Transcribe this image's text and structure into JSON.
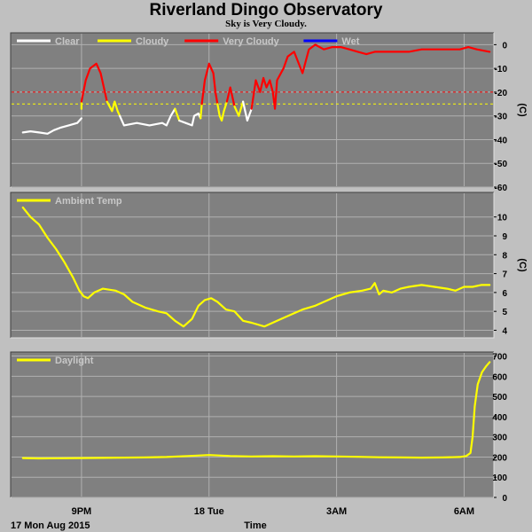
{
  "header": {
    "title": "Riverland Dingo Observatory",
    "subtitle": "Sky is Very Cloudy."
  },
  "footer": {
    "date_label": "17 Mon Aug 2015",
    "x_axis_label": "Time"
  },
  "colors": {
    "background": "#c0c0c0",
    "panel": "#808080",
    "grid": "#b0b0b0",
    "clear": "#ffffff",
    "cloudy": "#ffff00",
    "very_cloudy": "#ff0000",
    "wet": "#0000ff",
    "threshold_very_cloudy": "#ff0000",
    "threshold_cloudy": "#ffff00"
  },
  "chart_data": [
    {
      "type": "line",
      "panel": "sky",
      "ylabel": "(C)",
      "ylim": [
        -60,
        5
      ],
      "yticks": [
        "0",
        "-10",
        "-20",
        "-30",
        "-40",
        "-50",
        "-60"
      ],
      "xlim": [
        19.5,
        30.7
      ],
      "xticks": [
        {
          "x": 21,
          "label": "9PM"
        },
        {
          "x": 24,
          "label": "18 Tue"
        },
        {
          "x": 27,
          "label": "3AM"
        },
        {
          "x": 30,
          "label": "6AM"
        }
      ],
      "legend": [
        {
          "label": "Clear",
          "color": "#ffffff"
        },
        {
          "label": "Cloudy",
          "color": "#ffff00"
        },
        {
          "label": "Very Cloudy",
          "color": "#ff0000"
        },
        {
          "label": "Wet",
          "color": "#0000ff"
        }
      ],
      "thresholds": [
        {
          "y": -20,
          "color": "#ff0000"
        },
        {
          "y": -25,
          "color": "#ffff00"
        }
      ],
      "series": [
        {
          "name": "Clear",
          "color": "#ffffff",
          "points": [
            [
              19.62,
              -37
            ],
            [
              19.8,
              -36.5
            ],
            [
              20.0,
              -37
            ],
            [
              20.2,
              -37.5
            ],
            [
              20.35,
              -36
            ],
            [
              20.5,
              -35
            ],
            [
              20.7,
              -34
            ],
            [
              20.9,
              -33
            ],
            [
              21.0,
              -31
            ]
          ]
        },
        {
          "name": "Cloudy",
          "color": "#ffff00",
          "points": [
            [
              21.0,
              -27
            ],
            [
              21.0,
              -24
            ]
          ]
        },
        {
          "name": "Very Cloudy",
          "color": "#ff0000",
          "points": [
            [
              21.0,
              -24
            ],
            [
              21.1,
              -15
            ],
            [
              21.2,
              -10
            ],
            [
              21.35,
              -8
            ],
            [
              21.45,
              -12
            ],
            [
              21.55,
              -20
            ],
            [
              21.6,
              -24
            ]
          ]
        },
        {
          "name": "Cloudy",
          "color": "#ffff00",
          "points": [
            [
              21.6,
              -24
            ],
            [
              21.72,
              -28
            ],
            [
              21.78,
              -24
            ],
            [
              21.85,
              -28
            ],
            [
              21.9,
              -30
            ]
          ]
        },
        {
          "name": "Clear",
          "color": "#ffffff",
          "points": [
            [
              21.9,
              -30
            ],
            [
              22.0,
              -34
            ],
            [
              22.3,
              -33
            ],
            [
              22.6,
              -34
            ],
            [
              22.9,
              -33
            ],
            [
              23.0,
              -34
            ],
            [
              23.1,
              -30
            ],
            [
              23.2,
              -27
            ]
          ]
        },
        {
          "name": "Cloudy",
          "color": "#ffff00",
          "points": [
            [
              23.2,
              -27
            ],
            [
              23.3,
              -32
            ]
          ]
        },
        {
          "name": "Clear",
          "color": "#ffffff",
          "points": [
            [
              23.3,
              -32
            ],
            [
              23.45,
              -33
            ],
            [
              23.6,
              -34
            ],
            [
              23.65,
              -30
            ],
            [
              23.75,
              -29
            ],
            [
              23.8,
              -31
            ]
          ]
        },
        {
          "name": "Cloudy",
          "color": "#ffff00",
          "points": [
            [
              23.8,
              -31
            ],
            [
              23.83,
              -25
            ]
          ]
        },
        {
          "name": "Very Cloudy",
          "color": "#ff0000",
          "points": [
            [
              23.83,
              -25
            ],
            [
              23.9,
              -15
            ],
            [
              24.0,
              -8
            ],
            [
              24.1,
              -12
            ],
            [
              24.15,
              -20
            ],
            [
              24.2,
              -25
            ]
          ]
        },
        {
          "name": "Cloudy",
          "color": "#ffff00",
          "points": [
            [
              24.2,
              -25
            ],
            [
              24.25,
              -30
            ],
            [
              24.3,
              -32
            ],
            [
              24.35,
              -28
            ],
            [
              24.42,
              -24
            ]
          ]
        },
        {
          "name": "Very Cloudy",
          "color": "#ff0000",
          "points": [
            [
              24.42,
              -24
            ],
            [
              24.5,
              -18
            ],
            [
              24.55,
              -22
            ],
            [
              24.6,
              -26
            ]
          ]
        },
        {
          "name": "Cloudy",
          "color": "#ffff00",
          "points": [
            [
              24.6,
              -26
            ],
            [
              24.7,
              -30
            ],
            [
              24.8,
              -24
            ]
          ]
        },
        {
          "name": "Clear",
          "color": "#ffffff",
          "points": [
            [
              24.8,
              -24
            ],
            [
              24.9,
              -32
            ],
            [
              25.0,
              -27
            ]
          ]
        },
        {
          "name": "Very Cloudy",
          "color": "#ff0000",
          "points": [
            [
              25.0,
              -27
            ],
            [
              25.1,
              -15
            ],
            [
              25.2,
              -20
            ],
            [
              25.28,
              -14
            ],
            [
              25.35,
              -18
            ],
            [
              25.43,
              -15
            ],
            [
              25.5,
              -20
            ],
            [
              25.55,
              -27
            ],
            [
              25.6,
              -15
            ],
            [
              25.75,
              -10
            ],
            [
              25.85,
              -5
            ],
            [
              26.0,
              -3
            ],
            [
              26.2,
              -12
            ],
            [
              26.35,
              -2
            ],
            [
              26.5,
              0
            ],
            [
              26.7,
              -2
            ],
            [
              26.9,
              -1
            ],
            [
              27.1,
              -1
            ],
            [
              27.3,
              -2
            ],
            [
              27.5,
              -3
            ],
            [
              27.7,
              -4
            ],
            [
              27.9,
              -3
            ],
            [
              28.1,
              -3
            ],
            [
              28.4,
              -3
            ],
            [
              28.7,
              -3
            ],
            [
              29.0,
              -2
            ],
            [
              29.3,
              -2
            ],
            [
              29.6,
              -2
            ],
            [
              29.9,
              -2
            ],
            [
              30.1,
              -1
            ],
            [
              30.3,
              -2
            ],
            [
              30.6,
              -3
            ]
          ]
        }
      ]
    },
    {
      "type": "line",
      "panel": "ambient",
      "ylabel": "(C)",
      "ylim": [
        3.6,
        11.3
      ],
      "yticks": [
        "10",
        "9",
        "8",
        "7",
        "6",
        "5",
        "4"
      ],
      "xlim": [
        19.5,
        30.7
      ],
      "xticks": [
        {
          "x": 21,
          "label": "9PM"
        },
        {
          "x": 24,
          "label": "18 Tue"
        },
        {
          "x": 27,
          "label": "3AM"
        },
        {
          "x": 30,
          "label": "6AM"
        }
      ],
      "legend": [
        {
          "label": "Ambient Temp",
          "color": "#ffff00"
        }
      ],
      "series": [
        {
          "name": "Ambient Temp",
          "color": "#ffff00",
          "points": [
            [
              19.62,
              10.5
            ],
            [
              19.8,
              10.0
            ],
            [
              20.0,
              9.6
            ],
            [
              20.2,
              8.9
            ],
            [
              20.4,
              8.3
            ],
            [
              20.6,
              7.6
            ],
            [
              20.8,
              6.8
            ],
            [
              20.95,
              6.1
            ],
            [
              21.05,
              5.8
            ],
            [
              21.15,
              5.7
            ],
            [
              21.3,
              6.0
            ],
            [
              21.5,
              6.2
            ],
            [
              21.8,
              6.1
            ],
            [
              22.0,
              5.9
            ],
            [
              22.2,
              5.5
            ],
            [
              22.5,
              5.2
            ],
            [
              22.8,
              5.0
            ],
            [
              23.0,
              4.9
            ],
            [
              23.2,
              4.5
            ],
            [
              23.4,
              4.2
            ],
            [
              23.6,
              4.6
            ],
            [
              23.75,
              5.3
            ],
            [
              23.9,
              5.6
            ],
            [
              24.05,
              5.7
            ],
            [
              24.2,
              5.5
            ],
            [
              24.4,
              5.1
            ],
            [
              24.6,
              5.0
            ],
            [
              24.8,
              4.5
            ],
            [
              25.0,
              4.4
            ],
            [
              25.3,
              4.2
            ],
            [
              25.6,
              4.5
            ],
            [
              25.9,
              4.8
            ],
            [
              26.2,
              5.1
            ],
            [
              26.5,
              5.3
            ],
            [
              26.8,
              5.6
            ],
            [
              27.0,
              5.8
            ],
            [
              27.3,
              6.0
            ],
            [
              27.6,
              6.1
            ],
            [
              27.8,
              6.2
            ],
            [
              27.9,
              6.5
            ],
            [
              28.0,
              5.9
            ],
            [
              28.1,
              6.1
            ],
            [
              28.3,
              6.0
            ],
            [
              28.5,
              6.2
            ],
            [
              28.7,
              6.3
            ],
            [
              29.0,
              6.4
            ],
            [
              29.3,
              6.3
            ],
            [
              29.6,
              6.2
            ],
            [
              29.8,
              6.1
            ],
            [
              30.0,
              6.3
            ],
            [
              30.2,
              6.3
            ],
            [
              30.4,
              6.4
            ],
            [
              30.6,
              6.4
            ]
          ]
        }
      ]
    },
    {
      "type": "line",
      "panel": "daylight",
      "ylabel": "",
      "ylim": [
        0,
        720
      ],
      "yticks": [
        "700",
        "600",
        "500",
        "400",
        "300",
        "200",
        "100",
        "0"
      ],
      "xlim": [
        19.5,
        30.7
      ],
      "xticks": [
        {
          "x": 21,
          "label": "9PM"
        },
        {
          "x": 24,
          "label": "18 Tue"
        },
        {
          "x": 27,
          "label": "3AM"
        },
        {
          "x": 30,
          "label": "6AM"
        }
      ],
      "legend": [
        {
          "label": "Daylight",
          "color": "#ffff00"
        }
      ],
      "series": [
        {
          "name": "Daylight",
          "color": "#ffff00",
          "points": [
            [
              19.62,
              195
            ],
            [
              20.0,
              193
            ],
            [
              20.5,
              194
            ],
            [
              21.0,
              195
            ],
            [
              21.5,
              196
            ],
            [
              22.0,
              197
            ],
            [
              22.5,
              198
            ],
            [
              23.0,
              200
            ],
            [
              23.5,
              205
            ],
            [
              24.0,
              210
            ],
            [
              24.5,
              205
            ],
            [
              25.0,
              203
            ],
            [
              25.5,
              204
            ],
            [
              26.0,
              203
            ],
            [
              26.5,
              204
            ],
            [
              27.0,
              203
            ],
            [
              27.5,
              201
            ],
            [
              28.0,
              199
            ],
            [
              28.5,
              198
            ],
            [
              29.0,
              197
            ],
            [
              29.5,
              198
            ],
            [
              29.9,
              200
            ],
            [
              30.05,
              205
            ],
            [
              30.15,
              220
            ],
            [
              30.2,
              300
            ],
            [
              30.25,
              450
            ],
            [
              30.32,
              560
            ],
            [
              30.42,
              620
            ],
            [
              30.52,
              650
            ],
            [
              30.6,
              670
            ]
          ]
        }
      ]
    }
  ]
}
